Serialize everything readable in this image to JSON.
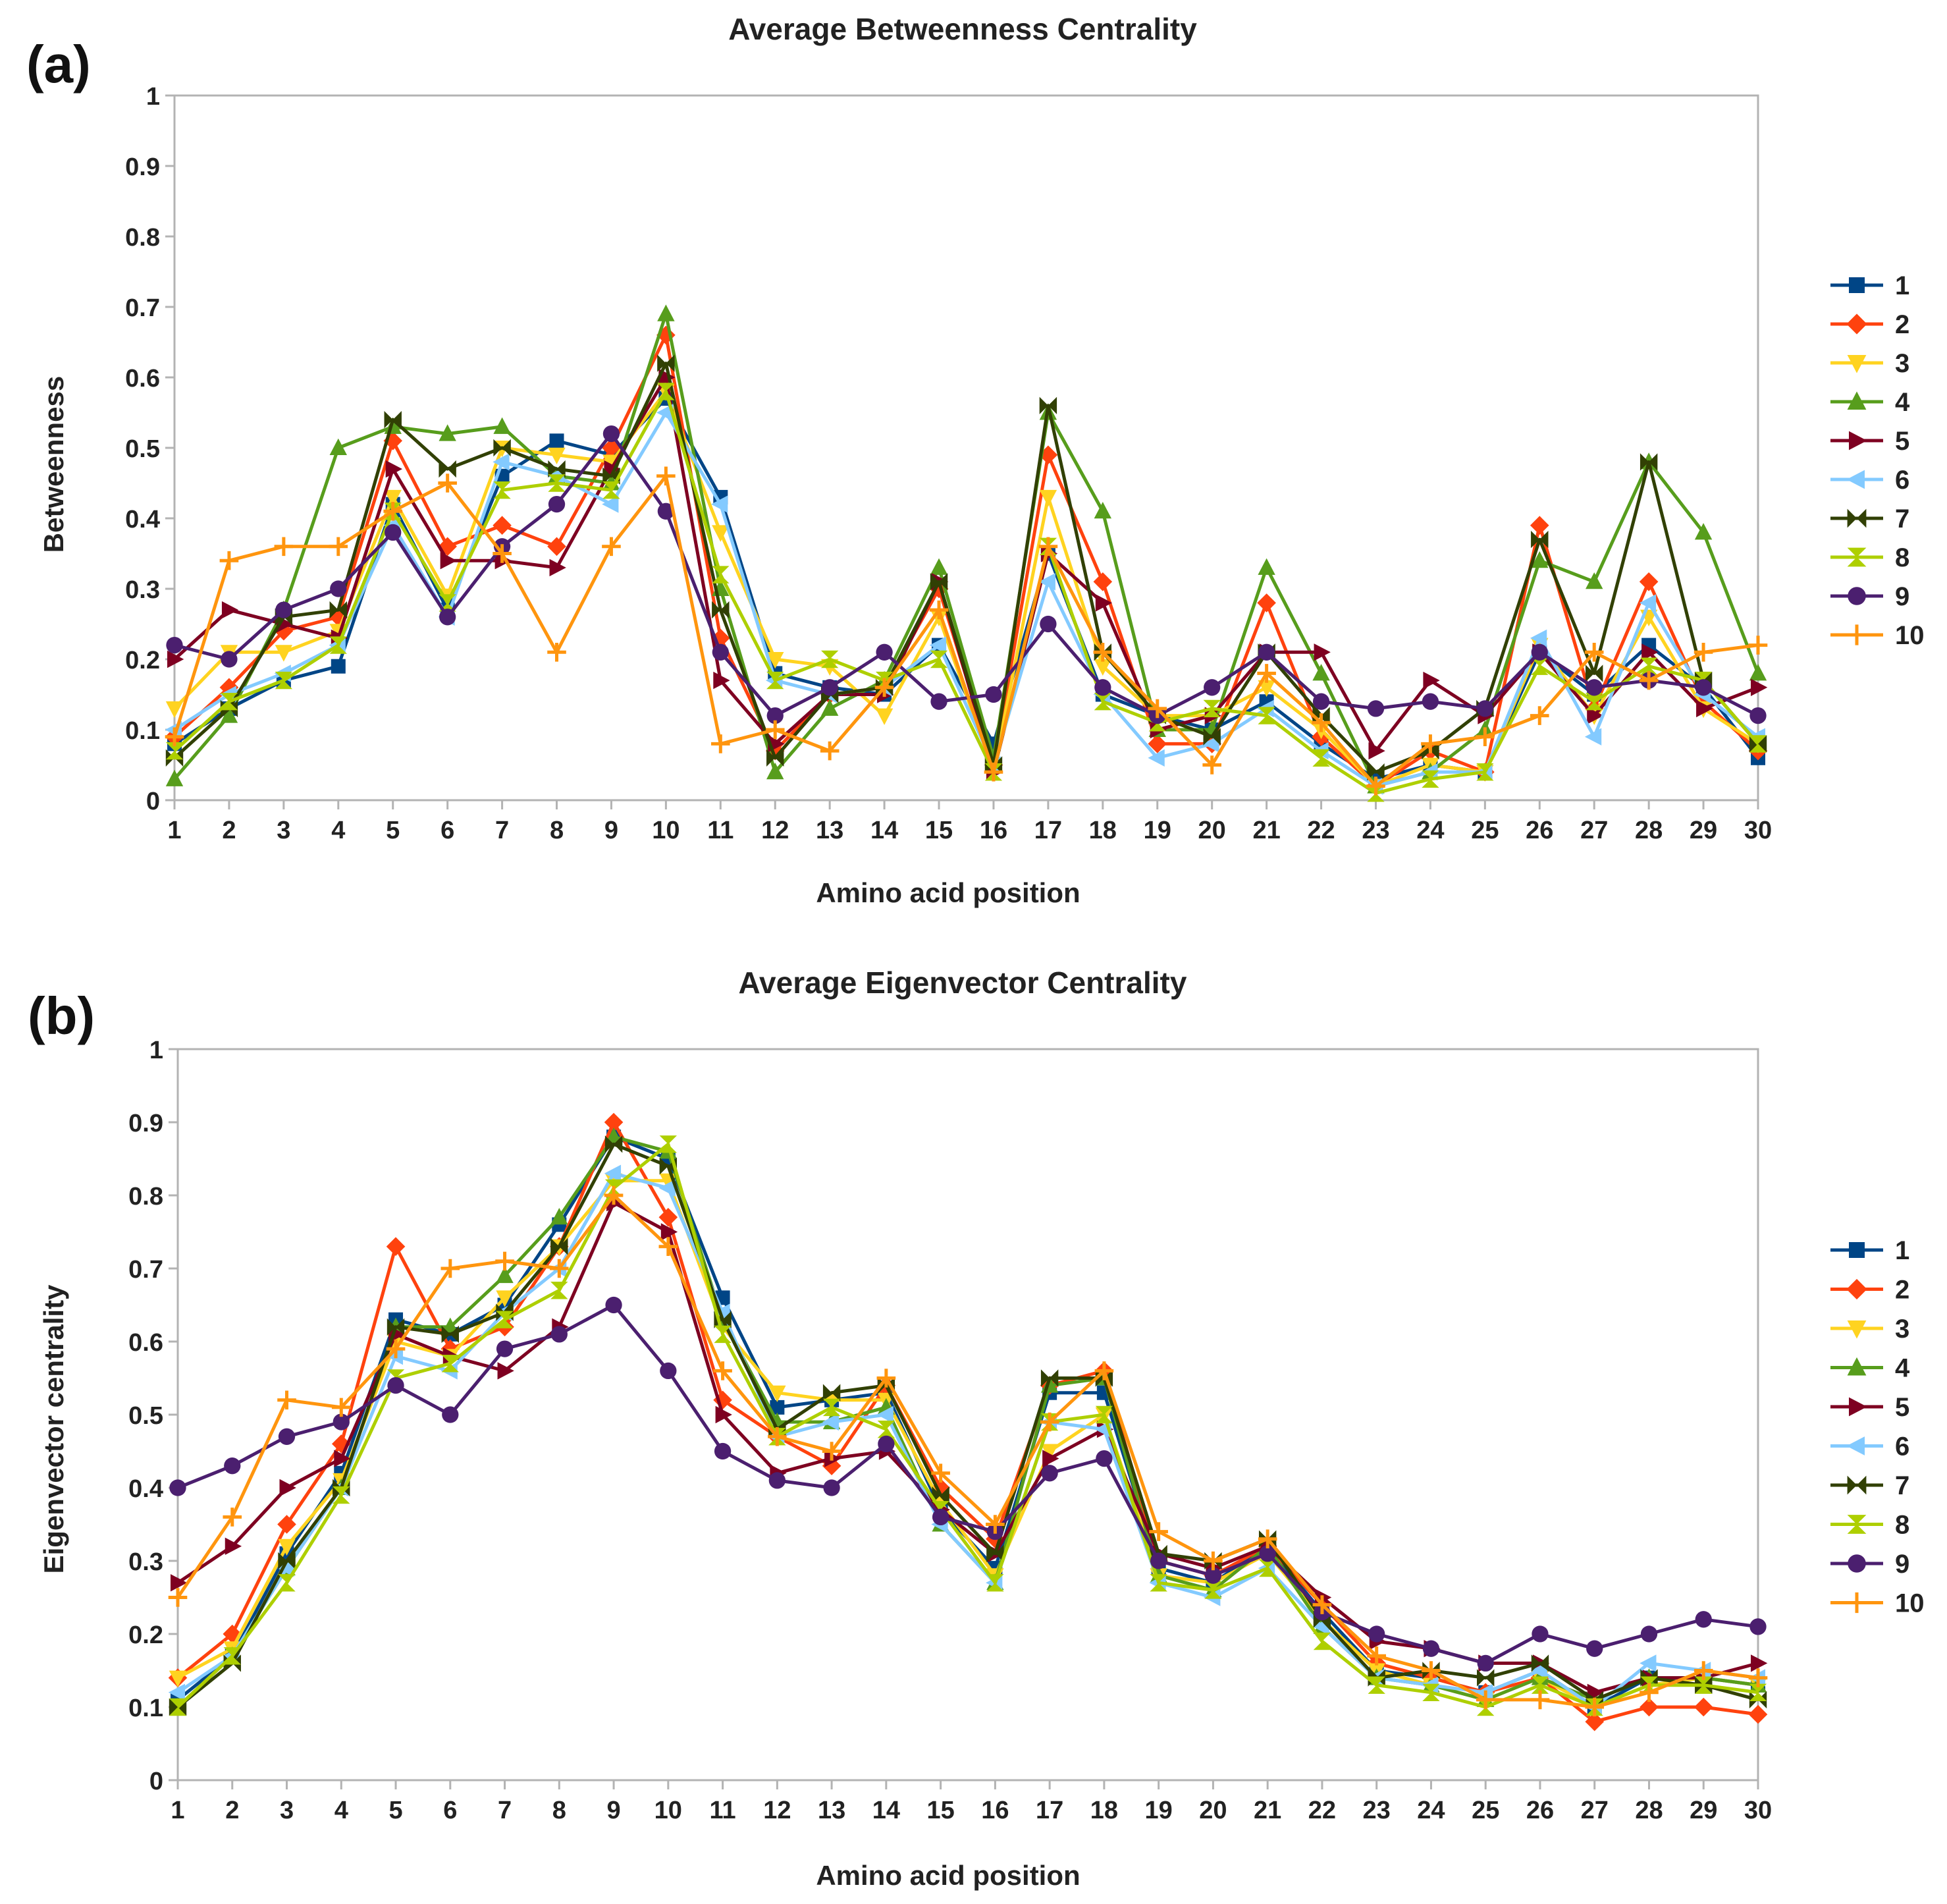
{
  "panels": [
    {
      "label": "(a)"
    },
    {
      "label": "(b)"
    }
  ],
  "chart_data": [
    {
      "type": "line",
      "title": "Average Betweenness Centrality",
      "xlabel": "Amino acid position",
      "ylabel": "Betweenness",
      "ylim": [
        0,
        1
      ],
      "yticks": [
        "0",
        "0.1",
        "0.2",
        "0.3",
        "0.4",
        "0.5",
        "0.6",
        "0.7",
        "0.8",
        "0.9",
        "1"
      ],
      "categories": [
        "1",
        "2",
        "3",
        "4",
        "5",
        "6",
        "7",
        "8",
        "9",
        "10",
        "11",
        "12",
        "13",
        "14",
        "15",
        "16",
        "17",
        "18",
        "19",
        "20",
        "21",
        "22",
        "23",
        "24",
        "25",
        "26",
        "27",
        "28",
        "29",
        "30"
      ],
      "grid": false,
      "legend": "right",
      "series": [
        {
          "name": "1",
          "color": "#004586",
          "marker": "square",
          "values": [
            0.08,
            0.13,
            0.17,
            0.19,
            0.42,
            0.27,
            0.46,
            0.51,
            0.49,
            0.57,
            0.43,
            0.18,
            0.16,
            0.15,
            0.22,
            0.08,
            0.35,
            0.15,
            0.12,
            0.1,
            0.14,
            0.08,
            0.03,
            0.05,
            0.04,
            0.21,
            0.15,
            0.22,
            0.16,
            0.06
          ]
        },
        {
          "name": "2",
          "color": "#ff420e",
          "marker": "diamond",
          "values": [
            0.09,
            0.16,
            0.24,
            0.26,
            0.51,
            0.36,
            0.39,
            0.36,
            0.5,
            0.66,
            0.23,
            0.07,
            0.15,
            0.16,
            0.3,
            0.05,
            0.49,
            0.31,
            0.08,
            0.08,
            0.28,
            0.09,
            0.02,
            0.07,
            0.04,
            0.39,
            0.13,
            0.31,
            0.14,
            0.07
          ]
        },
        {
          "name": "3",
          "color": "#ffd320",
          "marker": "triangle-down",
          "values": [
            0.13,
            0.21,
            0.21,
            0.24,
            0.43,
            0.29,
            0.5,
            0.49,
            0.48,
            0.58,
            0.38,
            0.2,
            0.19,
            0.12,
            0.26,
            0.04,
            0.43,
            0.19,
            0.12,
            0.12,
            0.16,
            0.1,
            0.02,
            0.05,
            0.04,
            0.22,
            0.12,
            0.26,
            0.13,
            0.08
          ]
        },
        {
          "name": "4",
          "color": "#579d1c",
          "marker": "triangle-up",
          "values": [
            0.03,
            0.12,
            0.27,
            0.5,
            0.53,
            0.52,
            0.53,
            0.46,
            0.45,
            0.69,
            0.3,
            0.04,
            0.13,
            0.17,
            0.33,
            0.06,
            0.55,
            0.41,
            0.1,
            0.1,
            0.33,
            0.18,
            0.02,
            0.04,
            0.1,
            0.34,
            0.31,
            0.48,
            0.38,
            0.18
          ]
        },
        {
          "name": "5",
          "color": "#7e0021",
          "marker": "triangle-right",
          "values": [
            0.2,
            0.27,
            0.25,
            0.23,
            0.47,
            0.34,
            0.34,
            0.33,
            0.47,
            0.6,
            0.17,
            0.08,
            0.15,
            0.15,
            0.31,
            0.04,
            0.35,
            0.28,
            0.1,
            0.12,
            0.21,
            0.21,
            0.07,
            0.17,
            0.12,
            0.21,
            0.12,
            0.21,
            0.13,
            0.16
          ]
        },
        {
          "name": "6",
          "color": "#83caff",
          "marker": "triangle-left",
          "values": [
            0.1,
            0.15,
            0.18,
            0.22,
            0.39,
            0.26,
            0.48,
            0.46,
            0.42,
            0.55,
            0.42,
            0.17,
            0.15,
            0.16,
            0.22,
            0.05,
            0.31,
            0.15,
            0.06,
            0.08,
            0.13,
            0.07,
            0.02,
            0.04,
            0.04,
            0.23,
            0.09,
            0.28,
            0.15,
            0.09
          ]
        },
        {
          "name": "7",
          "color": "#314004",
          "marker": "bowtie",
          "values": [
            0.06,
            0.13,
            0.26,
            0.27,
            0.54,
            0.47,
            0.5,
            0.47,
            0.46,
            0.62,
            0.27,
            0.06,
            0.15,
            0.16,
            0.31,
            0.05,
            0.56,
            0.21,
            0.12,
            0.09,
            0.21,
            0.12,
            0.04,
            0.07,
            0.13,
            0.37,
            0.18,
            0.48,
            0.17,
            0.08
          ]
        },
        {
          "name": "8",
          "color": "#aecf00",
          "marker": "hourglass",
          "values": [
            0.07,
            0.14,
            0.17,
            0.22,
            0.41,
            0.28,
            0.44,
            0.45,
            0.44,
            0.58,
            0.32,
            0.17,
            0.2,
            0.17,
            0.2,
            0.04,
            0.36,
            0.14,
            0.11,
            0.13,
            0.12,
            0.06,
            0.01,
            0.03,
            0.04,
            0.19,
            0.14,
            0.19,
            0.17,
            0.08
          ]
        },
        {
          "name": "9",
          "color": "#4b1f6f",
          "marker": "circle",
          "values": [
            0.22,
            0.2,
            0.27,
            0.3,
            0.38,
            0.26,
            0.36,
            0.42,
            0.52,
            0.41,
            0.21,
            0.12,
            0.16,
            0.21,
            0.14,
            0.15,
            0.25,
            0.16,
            0.12,
            0.16,
            0.21,
            0.14,
            0.13,
            0.14,
            0.13,
            0.21,
            0.16,
            0.17,
            0.16,
            0.12
          ]
        },
        {
          "name": "10",
          "color": "#ff950e",
          "marker": "plus",
          "values": [
            0.09,
            0.34,
            0.36,
            0.36,
            0.41,
            0.45,
            0.35,
            0.21,
            0.36,
            0.46,
            0.08,
            0.1,
            0.07,
            0.16,
            0.27,
            0.04,
            0.36,
            0.21,
            0.13,
            0.05,
            0.18,
            0.11,
            0.02,
            0.08,
            0.09,
            0.12,
            0.21,
            0.17,
            0.21,
            0.22
          ]
        }
      ]
    },
    {
      "type": "line",
      "title": "Average Eigenvector Centrality",
      "xlabel": "Amino acid position",
      "ylabel": "Eigenvector centrality",
      "ylim": [
        0,
        1
      ],
      "yticks": [
        "0",
        "0.1",
        "0.2",
        "0.3",
        "0.4",
        "0.5",
        "0.6",
        "0.7",
        "0.8",
        "0.9",
        "1"
      ],
      "categories": [
        "1",
        "2",
        "3",
        "4",
        "5",
        "6",
        "7",
        "8",
        "9",
        "10",
        "11",
        "12",
        "13",
        "14",
        "15",
        "16",
        "17",
        "18",
        "19",
        "20",
        "21",
        "22",
        "23",
        "24",
        "25",
        "26",
        "27",
        "28",
        "29",
        "30"
      ],
      "grid": false,
      "legend": "right",
      "series": [
        {
          "name": "1",
          "color": "#004586",
          "marker": "square",
          "values": [
            0.11,
            0.17,
            0.31,
            0.42,
            0.63,
            0.61,
            0.65,
            0.76,
            0.88,
            0.85,
            0.66,
            0.51,
            0.52,
            0.53,
            0.37,
            0.29,
            0.53,
            0.53,
            0.29,
            0.27,
            0.32,
            0.23,
            0.15,
            0.14,
            0.12,
            0.15,
            0.1,
            0.14,
            0.14,
            0.13
          ]
        },
        {
          "name": "2",
          "color": "#ff420e",
          "marker": "diamond",
          "values": [
            0.14,
            0.2,
            0.35,
            0.46,
            0.73,
            0.59,
            0.62,
            0.73,
            0.9,
            0.77,
            0.52,
            0.47,
            0.43,
            0.54,
            0.4,
            0.33,
            0.54,
            0.56,
            0.3,
            0.28,
            0.32,
            0.24,
            0.16,
            0.14,
            0.12,
            0.14,
            0.08,
            0.1,
            0.1,
            0.09
          ]
        },
        {
          "name": "3",
          "color": "#ffd320",
          "marker": "triangle-down",
          "values": [
            0.14,
            0.18,
            0.32,
            0.41,
            0.6,
            0.58,
            0.66,
            0.73,
            0.82,
            0.82,
            0.62,
            0.53,
            0.52,
            0.52,
            0.38,
            0.28,
            0.45,
            0.5,
            0.28,
            0.27,
            0.31,
            0.22,
            0.15,
            0.13,
            0.11,
            0.14,
            0.1,
            0.13,
            0.14,
            0.13
          ]
        },
        {
          "name": "4",
          "color": "#579d1c",
          "marker": "triangle-up",
          "values": [
            0.1,
            0.17,
            0.29,
            0.4,
            0.62,
            0.62,
            0.69,
            0.77,
            0.88,
            0.86,
            0.63,
            0.49,
            0.49,
            0.51,
            0.35,
            0.27,
            0.54,
            0.55,
            0.28,
            0.26,
            0.32,
            0.21,
            0.14,
            0.13,
            0.11,
            0.14,
            0.11,
            0.14,
            0.14,
            0.13
          ]
        },
        {
          "name": "5",
          "color": "#7e0021",
          "marker": "triangle-right",
          "values": [
            0.27,
            0.32,
            0.4,
            0.44,
            0.61,
            0.58,
            0.56,
            0.62,
            0.79,
            0.75,
            0.5,
            0.42,
            0.44,
            0.45,
            0.37,
            0.31,
            0.44,
            0.48,
            0.31,
            0.29,
            0.32,
            0.25,
            0.19,
            0.18,
            0.16,
            0.16,
            0.12,
            0.14,
            0.14,
            0.16
          ]
        },
        {
          "name": "6",
          "color": "#83caff",
          "marker": "triangle-left",
          "values": [
            0.12,
            0.17,
            0.29,
            0.4,
            0.58,
            0.56,
            0.64,
            0.7,
            0.83,
            0.81,
            0.64,
            0.47,
            0.49,
            0.5,
            0.35,
            0.27,
            0.49,
            0.48,
            0.27,
            0.25,
            0.29,
            0.21,
            0.14,
            0.13,
            0.12,
            0.15,
            0.1,
            0.16,
            0.15,
            0.14
          ]
        },
        {
          "name": "7",
          "color": "#314004",
          "marker": "bowtie",
          "values": [
            0.1,
            0.16,
            0.3,
            0.4,
            0.62,
            0.61,
            0.64,
            0.73,
            0.87,
            0.84,
            0.63,
            0.48,
            0.53,
            0.54,
            0.39,
            0.31,
            0.55,
            0.55,
            0.31,
            0.3,
            0.33,
            0.22,
            0.14,
            0.15,
            0.14,
            0.16,
            0.11,
            0.14,
            0.13,
            0.11
          ]
        },
        {
          "name": "8",
          "color": "#aecf00",
          "marker": "hourglass",
          "values": [
            0.1,
            0.17,
            0.27,
            0.39,
            0.55,
            0.57,
            0.63,
            0.67,
            0.81,
            0.87,
            0.61,
            0.47,
            0.51,
            0.48,
            0.37,
            0.27,
            0.49,
            0.5,
            0.27,
            0.26,
            0.29,
            0.19,
            0.13,
            0.12,
            0.1,
            0.13,
            0.1,
            0.13,
            0.13,
            0.12
          ]
        },
        {
          "name": "9",
          "color": "#4b1f6f",
          "marker": "circle",
          "values": [
            0.4,
            0.43,
            0.47,
            0.49,
            0.54,
            0.5,
            0.59,
            0.61,
            0.65,
            0.56,
            0.45,
            0.41,
            0.4,
            0.46,
            0.36,
            0.34,
            0.42,
            0.44,
            0.3,
            0.28,
            0.31,
            0.23,
            0.2,
            0.18,
            0.16,
            0.2,
            0.18,
            0.2,
            0.22,
            0.21
          ]
        },
        {
          "name": "10",
          "color": "#ff950e",
          "marker": "plus",
          "values": [
            0.25,
            0.36,
            0.52,
            0.51,
            0.59,
            0.7,
            0.71,
            0.7,
            0.8,
            0.73,
            0.56,
            0.47,
            0.45,
            0.55,
            0.42,
            0.35,
            0.49,
            0.56,
            0.34,
            0.3,
            0.33,
            0.24,
            0.17,
            0.15,
            0.11,
            0.11,
            0.1,
            0.12,
            0.15,
            0.14
          ]
        }
      ]
    }
  ]
}
